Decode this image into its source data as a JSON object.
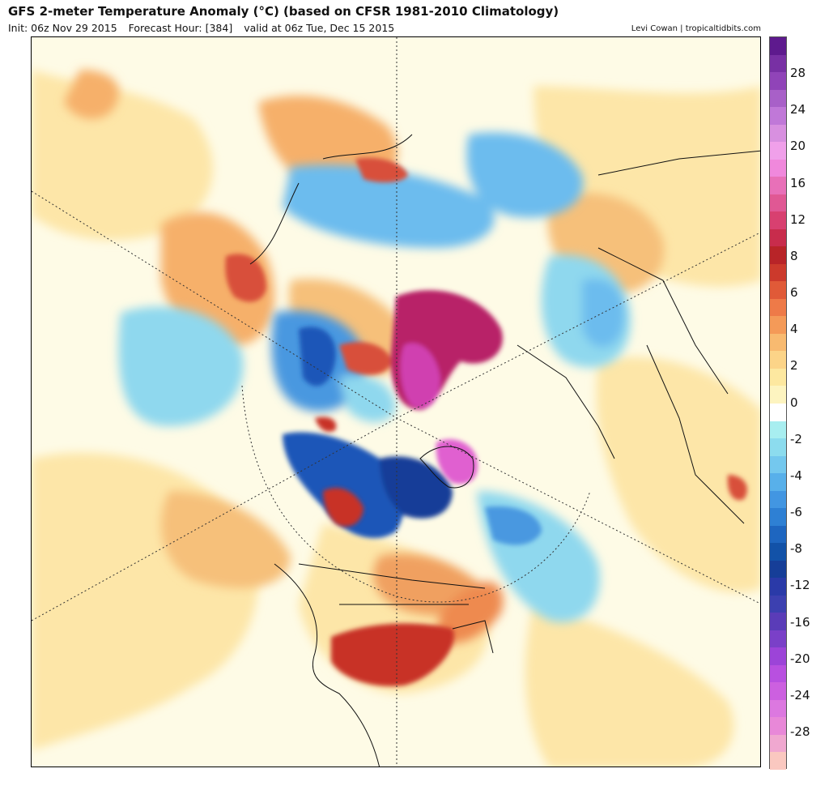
{
  "header": {
    "title": "GFS 2-meter Temperature Anomaly (°C) (based on CFSR 1981-2010 Climatology)",
    "init": "Init: 06z Nov 29 2015",
    "forecast_hour": "Forecast Hour: [384]",
    "valid": "valid at 06z Tue, Dec 15 2015",
    "credit": "Levi Cowan | tropicaltidbits.com"
  },
  "map": {
    "projection": "north-polar-stereographic",
    "anomaly_regions": [
      {
        "name": "Greenland warm anomaly",
        "kind": "warm-extreme",
        "color": "#e060d0"
      },
      {
        "name": "Arctic Ocean warm anomaly",
        "kind": "warm-extreme",
        "color": "#d040b0"
      },
      {
        "name": "Canadian Arctic cold anomaly",
        "kind": "cold-strong",
        "color": "#1f56b8"
      },
      {
        "name": "North Pacific cool anomaly",
        "kind": "cool",
        "color": "#8fd8ee"
      },
      {
        "name": "Siberia cool anomaly",
        "kind": "cool",
        "color": "#5ab0ea"
      },
      {
        "name": "US Southeast warm anomaly",
        "kind": "warm-strong",
        "color": "#c83228"
      },
      {
        "name": "Western Canada warm anomaly",
        "kind": "warm-strong",
        "color": "#c83228"
      }
    ]
  },
  "colorbar": {
    "colors": [
      "#fac8c0",
      "#f0a8d0",
      "#e888d8",
      "#dc78e0",
      "#cc60e0",
      "#b850e0",
      "#9c44d8",
      "#7a40c8",
      "#5a3cb8",
      "#3c40b0",
      "#2a3aa8",
      "#163e98",
      "#1252a8",
      "#1e66c0",
      "#2e80d4",
      "#4296e2",
      "#58b0ea",
      "#74c8ee",
      "#8cdcee",
      "#a8eef0",
      "#ffffff",
      "#fdf4c0",
      "#fde8a0",
      "#fcd488",
      "#f8ba70",
      "#f49a58",
      "#ee7a48",
      "#e05a38",
      "#cc3a2c",
      "#b82428",
      "#c82c4c",
      "#d84070",
      "#e05894",
      "#e870b8",
      "#f088dc",
      "#f0a0ea",
      "#d890e0",
      "#c078d8",
      "#a860c8",
      "#9044b8",
      "#7830a4",
      "#5e1a8e"
    ],
    "labels": [
      "28",
      "24",
      "20",
      "16",
      "12",
      "8",
      "6",
      "4",
      "2",
      "0",
      "-2",
      "-4",
      "-6",
      "-8",
      "-12",
      "-16",
      "-20",
      "-24",
      "-28"
    ]
  }
}
